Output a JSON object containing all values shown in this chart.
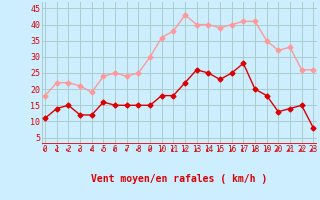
{
  "hours": [
    0,
    1,
    2,
    3,
    4,
    5,
    6,
    7,
    8,
    9,
    10,
    11,
    12,
    13,
    14,
    15,
    16,
    17,
    18,
    19,
    20,
    21,
    22,
    23
  ],
  "wind_avg": [
    11,
    14,
    15,
    12,
    12,
    16,
    15,
    15,
    15,
    15,
    18,
    18,
    22,
    26,
    25,
    23,
    25,
    28,
    20,
    18,
    13,
    14,
    15,
    8
  ],
  "wind_gust": [
    18,
    22,
    22,
    21,
    19,
    24,
    25,
    24,
    25,
    30,
    36,
    38,
    43,
    40,
    40,
    39,
    40,
    41,
    41,
    35,
    32,
    33,
    26,
    26
  ],
  "avg_color": "#dd0000",
  "gust_color": "#ff9999",
  "bg_color": "#cceeff",
  "grid_color": "#aacccc",
  "axis_label_color": "#dd0000",
  "tick_color": "#dd0000",
  "xlabel": "Vent moyen/en rafales ( km/h )",
  "yticks": [
    5,
    10,
    15,
    20,
    25,
    30,
    35,
    40,
    45
  ],
  "ylim": [
    3,
    47
  ],
  "xlim": [
    -0.3,
    23.3
  ]
}
